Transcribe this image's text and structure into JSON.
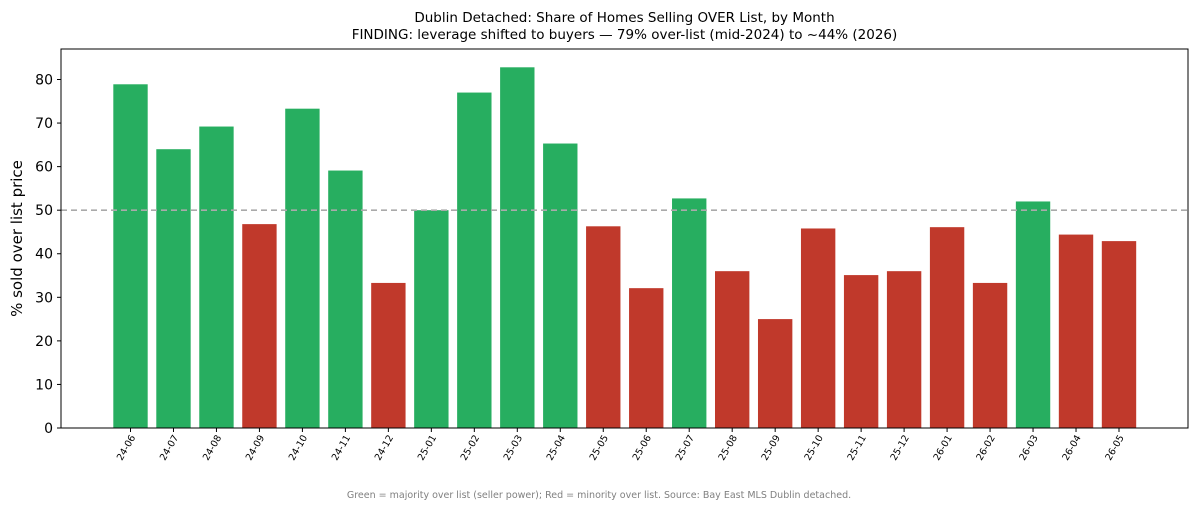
{
  "chart_data": {
    "type": "bar",
    "title": "Dublin Detached: Share of Homes Selling OVER List, by Month",
    "subtitle": "FINDING: leverage shifted to buyers — 79% over-list (mid-2024) to ~44% (2026)",
    "xlabel": "",
    "ylabel": "% sold over list price",
    "ylim": [
      0,
      87
    ],
    "yticks": [
      0,
      10,
      20,
      30,
      40,
      50,
      60,
      70,
      80
    ],
    "grid": false,
    "reference_line": {
      "value": 50,
      "style": "dashed",
      "color": "#aaaaaa"
    },
    "colors": {
      "majority": "#27ae60",
      "minority": "#c0392b"
    },
    "categories": [
      "24-06",
      "24-07",
      "24-08",
      "24-09",
      "24-10",
      "24-11",
      "24-12",
      "25-01",
      "25-02",
      "25-03",
      "25-04",
      "25-05",
      "25-06",
      "25-07",
      "25-08",
      "25-09",
      "25-10",
      "25-11",
      "25-12",
      "26-01",
      "26-02",
      "26-03",
      "26-04",
      "26-05"
    ],
    "values": [
      78.9,
      64.0,
      69.2,
      46.8,
      73.3,
      59.1,
      33.3,
      50.0,
      77.0,
      82.8,
      65.3,
      46.3,
      32.1,
      52.7,
      36.0,
      25.0,
      45.8,
      35.1,
      36.0,
      46.1,
      33.3,
      52.0,
      44.4,
      42.9
    ],
    "footnote": "Green = majority over list (seller power); Red = minority over list. Source: Bay East MLS Dublin detached."
  }
}
